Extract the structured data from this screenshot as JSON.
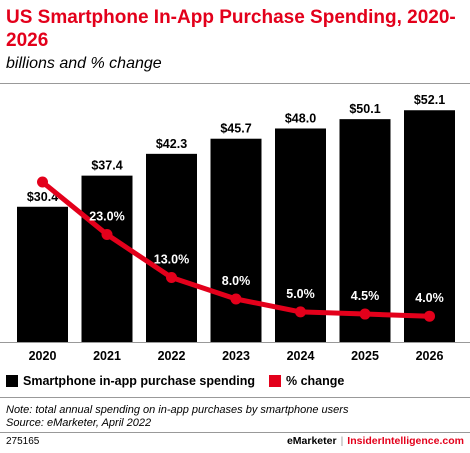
{
  "header": {
    "title": "US Smartphone In-App Purchase Spending, 2020-2026",
    "subtitle": "billions and % change"
  },
  "chart_data": {
    "type": "bar",
    "categories": [
      "2020",
      "2021",
      "2022",
      "2023",
      "2024",
      "2025",
      "2026"
    ],
    "series": [
      {
        "name": "Smartphone in-app purchase spending",
        "type": "bar",
        "values": [
          30.4,
          37.4,
          42.3,
          45.7,
          48.0,
          50.1,
          52.1
        ],
        "labels": [
          "$30.4",
          "$37.4",
          "$42.3",
          "$45.7",
          "$48.0",
          "$50.1",
          "$52.1"
        ]
      },
      {
        "name": "% change",
        "type": "line",
        "values": [
          35.2,
          23.0,
          13.0,
          8.0,
          5.0,
          4.5,
          4.0
        ],
        "labels": [
          "35.2%",
          "23.0%",
          "13.0%",
          "8.0%",
          "5.0%",
          "4.5%",
          "4.0%"
        ]
      }
    ],
    "bar_ylim": [
      0,
      58
    ],
    "line_ylim": [
      -2,
      58
    ],
    "colors": {
      "bar": "#000000",
      "line": "#e3001b"
    }
  },
  "legend": {
    "bar_label": "Smartphone in-app purchase spending",
    "line_label": "% change"
  },
  "footer": {
    "note": "Note: total annual spending on in-app purchases by smartphone users",
    "source": "Source: eMarketer, April 2022",
    "chart_id": "275165",
    "brand_left": "eMarketer",
    "separator": "|",
    "brand_right": "InsiderIntelligence.com"
  }
}
